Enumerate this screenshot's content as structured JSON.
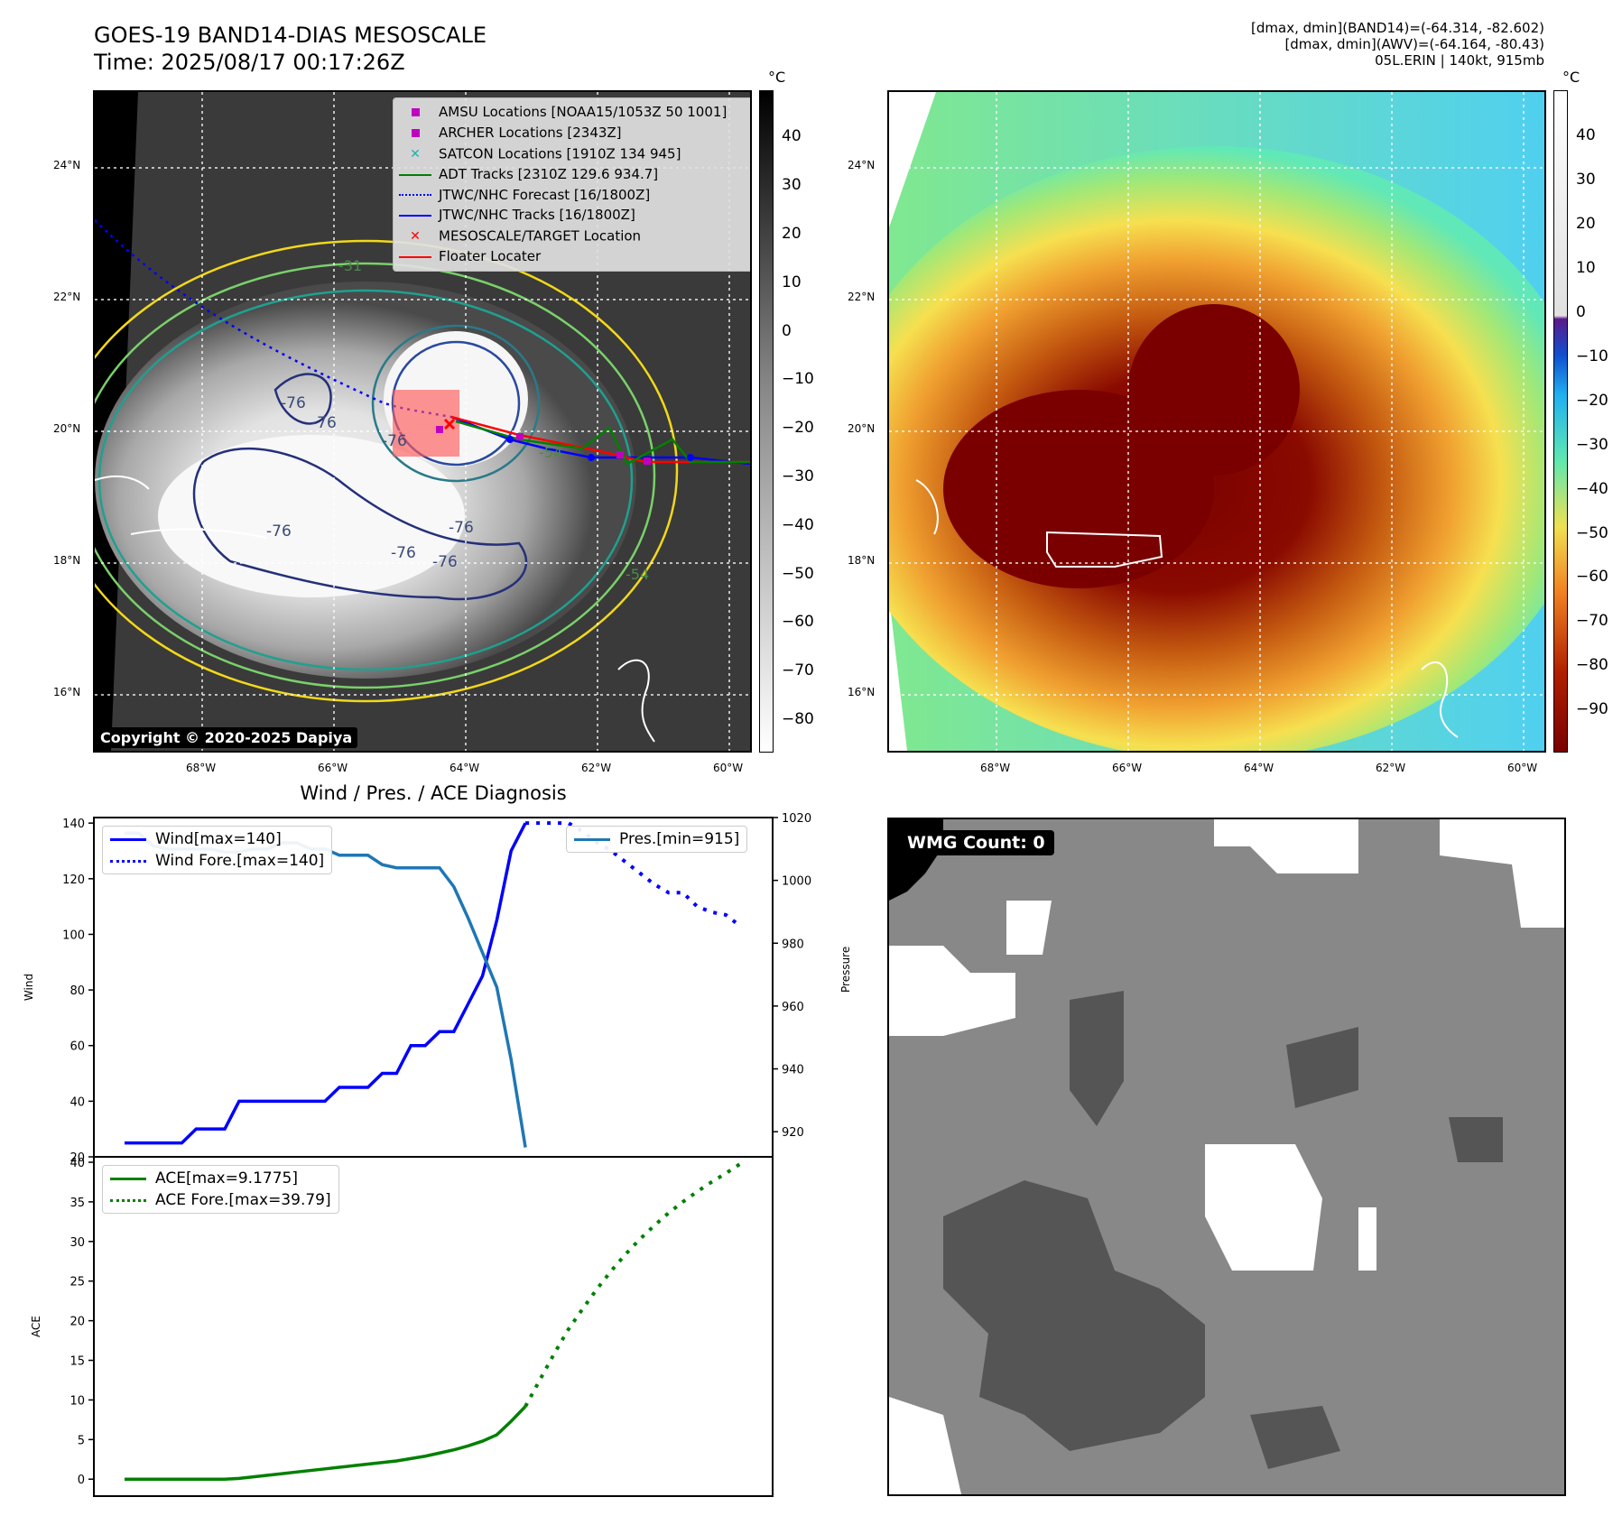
{
  "header": {
    "title_line1": "GOES-19 BAND14-DIAS MESOSCALE",
    "title_line2": "Time: 2025/08/17 00:17:26Z",
    "info_line1": "[dmax, dmin](BAND14)=(-64.314, -82.602)",
    "info_line2": "[dmax, dmin](AWV)=(-64.164, -80.43)",
    "info_line3": "05L.ERIN | 140kt, 915mb"
  },
  "map": {
    "lat_labels": [
      "24°N",
      "22°N",
      "20°N",
      "18°N",
      "16°N"
    ],
    "lon_labels": [
      "68°W",
      "66°W",
      "64°W",
      "62°W",
      "60°W"
    ],
    "contour_labels": [
      "-76",
      "-76",
      "-76",
      "-76",
      "-76",
      "-76",
      "-76",
      "-54",
      "-54",
      "-31"
    ],
    "copyright": "Copyright © 2020-2025 Dapiya",
    "legend": [
      {
        "label": "AMSU Locations [NOAA15/1053Z 50 1001]",
        "color": "#c000c0",
        "marker": "square"
      },
      {
        "label": "ARCHER Locations [2343Z]",
        "color": "#c000c0",
        "marker": "square"
      },
      {
        "label": "SATCON Locations [1910Z 134 945]",
        "color": "#20b0b0",
        "marker": "x"
      },
      {
        "label": "ADT Tracks [2310Z 129.6 934.7]",
        "color": "#008000",
        "marker": "line"
      },
      {
        "label": "JTWC/NHC Forecast [16/1800Z]",
        "color": "#0000ff",
        "marker": "dotted"
      },
      {
        "label": "JTWC/NHC Tracks [16/1800Z]",
        "color": "#0000ff",
        "marker": "line-dot"
      },
      {
        "label": "MESOSCALE/TARGET Location",
        "color": "#ff0000",
        "marker": "x"
      },
      {
        "label": "Floater Locater",
        "color": "#ff0000",
        "marker": "line"
      }
    ]
  },
  "colorbar_gray": {
    "unit": "°C",
    "ticks": [
      "40",
      "30",
      "20",
      "10",
      "0",
      "−10",
      "−20",
      "−30",
      "−40",
      "−50",
      "−60",
      "−70",
      "−80"
    ]
  },
  "colorbar_color": {
    "unit": "°C",
    "ticks": [
      "40",
      "30",
      "20",
      "10",
      "0",
      "−10",
      "−20",
      "−30",
      "−40",
      "−50",
      "−60",
      "−70",
      "−80",
      "−90"
    ]
  },
  "colors": {
    "wind": "#0000ff",
    "pressure": "#1f77b4",
    "ace": "#008000",
    "wmg_dark": "#555555",
    "wmg_mid": "#888888"
  },
  "wmg": {
    "label": "WMG Count: 0"
  },
  "chart_data": [
    {
      "type": "line",
      "title": "Wind / Pres. / ACE Diagnosis",
      "ylabel": "Wind",
      "ylabel_right": "Pressure",
      "ylim": [
        20,
        142
      ],
      "ylim_right": [
        912,
        1020
      ],
      "yticks": [
        20,
        40,
        60,
        80,
        100,
        120,
        140
      ],
      "yticks_right": [
        920,
        940,
        960,
        980,
        1000,
        1020
      ],
      "series": [
        {
          "name": "Wind[max=140]",
          "axis": "left",
          "style": "solid",
          "values": [
            25,
            25,
            25,
            25,
            25,
            30,
            30,
            30,
            40,
            40,
            40,
            40,
            40,
            40,
            40,
            45,
            45,
            45,
            50,
            50,
            60,
            60,
            65,
            65,
            75,
            85,
            105,
            130,
            140
          ]
        },
        {
          "name": "Wind Fore.[max=140]",
          "axis": "left",
          "style": "dotted",
          "values": [
            140,
            140,
            140,
            140,
            137,
            133,
            130,
            126,
            122,
            118,
            115,
            115,
            110,
            108,
            107,
            103
          ]
        },
        {
          "name": "Pres.[min=915]",
          "axis": "right",
          "style": "solid",
          "values": [
            1015,
            1015,
            1011,
            1010,
            1010,
            1010,
            1010,
            1009,
            1009,
            1010,
            1010,
            1012,
            1012,
            1010,
            1010,
            1008,
            1008,
            1008,
            1005,
            1004,
            1004,
            1004,
            1004,
            998,
            988,
            977,
            966,
            943,
            915
          ]
        }
      ]
    },
    {
      "type": "line",
      "ylabel": "ACE",
      "ylim": [
        -1,
        40
      ],
      "yticks": [
        0,
        5,
        10,
        15,
        20,
        25,
        30,
        35,
        40
      ],
      "series": [
        {
          "name": "ACE[max=9.1775]",
          "style": "solid",
          "values": [
            0,
            0,
            0,
            0,
            0,
            0,
            0,
            0,
            0.1,
            0.3,
            0.5,
            0.7,
            0.9,
            1.1,
            1.3,
            1.5,
            1.7,
            1.9,
            2.1,
            2.3,
            2.6,
            2.9,
            3.3,
            3.7,
            4.2,
            4.8,
            5.6,
            7.3,
            9.18
          ]
        },
        {
          "name": "ACE Fore.[max=39.79]",
          "style": "dotted",
          "values": [
            9.18,
            12.5,
            15.8,
            18.9,
            21.5,
            24,
            26.3,
            28.4,
            30.3,
            32,
            33.6,
            35,
            36.3,
            37.5,
            38.6,
            39.79
          ]
        }
      ]
    }
  ]
}
